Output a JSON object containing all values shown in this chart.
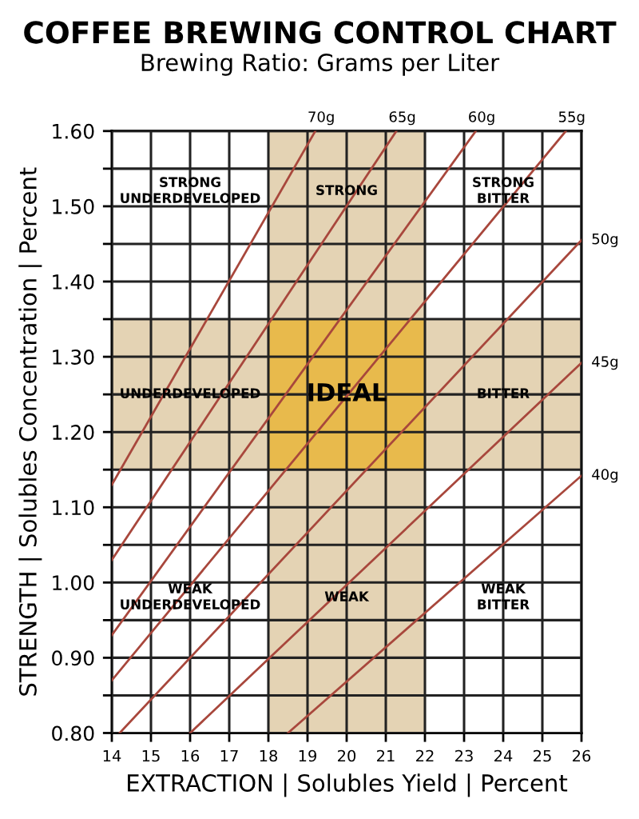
{
  "chart_data": {
    "type": "line",
    "title": "COFFEE BREWING CONTROL CHART",
    "subtitle": "Brewing Ratio: Grams per Liter",
    "xlabel": "EXTRACTION | Solubles Yield | Percent",
    "ylabel": "STRENGTH | Solubles Concentration | Percent",
    "series": [
      {
        "name": "70g",
        "color": "#a8473c",
        "x": [
          14,
          19.2
        ],
        "values": [
          1.13,
          1.6
        ]
      },
      {
        "name": "65g",
        "color": "#a8473c",
        "x": [
          14,
          21.27
        ],
        "values": [
          1.03,
          1.6
        ]
      },
      {
        "name": "60g",
        "color": "#a8473c",
        "x": [
          14,
          23.3
        ],
        "values": [
          0.93,
          1.6
        ]
      },
      {
        "name": "55g",
        "color": "#a8473c",
        "x": [
          14,
          25.6
        ],
        "values": [
          0.87,
          1.6
        ]
      },
      {
        "name": "50g",
        "color": "#a8473c",
        "x": [
          14.2,
          26
        ],
        "values": [
          0.8,
          1.455
        ]
      },
      {
        "name": "45g",
        "color": "#a8473c",
        "x": [
          16.0,
          26
        ],
        "values": [
          0.8,
          1.292
        ]
      },
      {
        "name": "40g",
        "color": "#a8473c",
        "x": [
          18.5,
          26
        ],
        "values": [
          0.8,
          1.142
        ]
      }
    ],
    "bands": [
      {
        "axis": "x",
        "from": 18,
        "to": 22,
        "color": "#e4d3b4"
      },
      {
        "axis": "y",
        "from": 1.15,
        "to": 1.35,
        "color": "#e4d3b4"
      }
    ],
    "annotations": [
      "STRONG\nUNDERDEVELOPED",
      "STRONG",
      "STRONG\nBITTER",
      "UNDERDEVELOPED",
      "IDEAL",
      "BITTER",
      "WEAK\nUNDERDEVELOPED",
      "WEAK",
      "WEAK\nBITTER"
    ],
    "xlim": [
      14,
      26
    ],
    "ylim": [
      0.8,
      1.6
    ],
    "xticks": [
      14,
      15,
      16,
      17,
      18,
      19,
      20,
      21,
      22,
      23,
      24,
      25,
      26
    ],
    "yticks": [
      {
        "value": 0.8,
        "label": "0.80"
      },
      {
        "value": 0.85,
        "label": null
      },
      {
        "value": 0.9,
        "label": "0.90"
      },
      {
        "value": 0.95,
        "label": null
      },
      {
        "value": 1.0,
        "label": "1.00"
      },
      {
        "value": 1.05,
        "label": null
      },
      {
        "value": 1.1,
        "label": "1.10"
      },
      {
        "value": 1.15,
        "label": null
      },
      {
        "value": 1.2,
        "label": "1.20"
      },
      {
        "value": 1.25,
        "label": null
      },
      {
        "value": 1.3,
        "label": "1.30"
      },
      {
        "value": 1.35,
        "label": null
      },
      {
        "value": 1.4,
        "label": "1.40"
      },
      {
        "value": 1.45,
        "label": null
      },
      {
        "value": 1.5,
        "label": "1.50"
      },
      {
        "value": 1.55,
        "label": null
      },
      {
        "value": 1.6,
        "label": "1.60"
      }
    ],
    "grid": true,
    "legend": false,
    "marker": "none",
    "line_style": "solid"
  }
}
